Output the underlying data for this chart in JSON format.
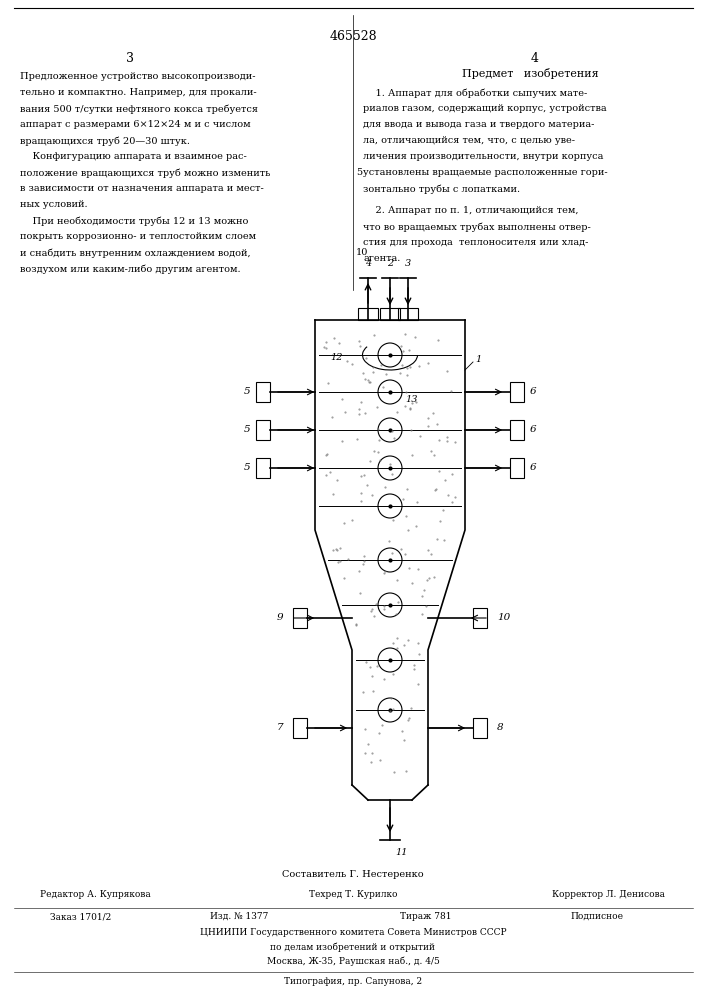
{
  "page_number_center": "465528",
  "page_left": "3",
  "page_right": "4",
  "left_col_text": [
    "Предложенное устройство высокопроизводи-",
    "тельно и компактно. Например, для прокали-",
    "вания 500 т/сутки нефтяного кокса требуется",
    "аппарат с размерами 6×12×24 м и с числом",
    "вращающихся труб 20—30 штук.",
    "    Конфигурацию аппарата и взаимное рас-",
    "положение вращающихся труб можно изменить",
    "в зависимости от назначения аппарата и мест-",
    "ных условий.",
    "    При необходимости трубы 12 и 13 можно",
    "покрыть коррозионно- и теплостойким слоем",
    "и снабдить внутренним охлаждением водой,",
    "воздухом или каким-либо другим агентом."
  ],
  "right_col_heading": "Предмет   изобретения",
  "right_col_text_1": [
    "    1. Аппарат для обработки сыпучих мате-",
    "риалов газом, содержащий корпус, устройства",
    "для ввода и вывода газа и твердого материа-",
    "ла, отличающийся тем, что, с целью уве-",
    "личения производительности, внутри корпуса",
    "установлены вращаемые расположенные гори-",
    "зонтально трубы с лопатками."
  ],
  "right_col_text_2": [
    "    2. Аппарат по п. 1, отличающийся тем,",
    "что во вращаемых трубах выполнены отвер-",
    "стия для прохода  теплоносителя или хлад-",
    "агента."
  ],
  "line5_number": "5",
  "footer_composer": "Составитель Г. Нестеренко",
  "footer_editor": "Редактор А. Купрякова",
  "footer_techr": "Техред Т. Курилко",
  "footer_corrector": "Корректор Л. Денисова",
  "footer_order": "Заказ 1701/2",
  "footer_izd": "Изд. № 1377",
  "footer_tirazh": "Тираж 781",
  "footer_podp": "Подписное",
  "footer_org": "ЦНИИПИ Государственного комитета Совета Министров СССР",
  "footer_dept": "по делам изобретений и открытий",
  "footer_addr": "Москва, Ж-35, Раушская наб., д. 4/5",
  "footer_typo": "Типография, пр. Сапунова, 2",
  "bg_color": "#ffffff",
  "text_color": "#000000"
}
